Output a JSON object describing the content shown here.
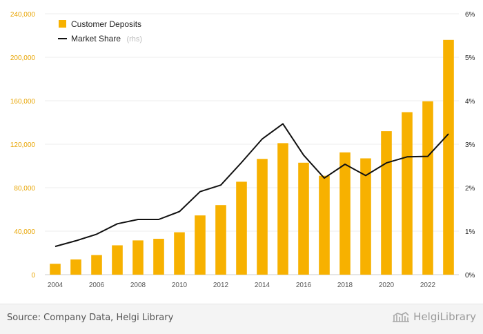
{
  "chart_data": {
    "type": "bar",
    "x": [
      2004,
      2005,
      2006,
      2007,
      2008,
      2009,
      2010,
      2011,
      2012,
      2013,
      2014,
      2015,
      2016,
      2017,
      2018,
      2019,
      2020,
      2021,
      2022,
      2023
    ],
    "xticks": [
      "2004",
      "2006",
      "2008",
      "2010",
      "2012",
      "2014",
      "2016",
      "2018",
      "2020",
      "2022"
    ],
    "series": [
      {
        "name": "Customer Deposits",
        "type": "bar",
        "axis": "left",
        "color": "#f7b100",
        "values": [
          10000,
          14000,
          18000,
          27000,
          31500,
          33000,
          39000,
          54500,
          64000,
          85500,
          106500,
          121000,
          103000,
          91000,
          112500,
          107000,
          132000,
          149500,
          159500,
          216000
        ]
      },
      {
        "name": "Market Share",
        "name_suffix": "(rhs)",
        "type": "line",
        "axis": "right",
        "color": "#111111",
        "values": [
          0.65,
          0.78,
          0.93,
          1.17,
          1.27,
          1.27,
          1.45,
          1.91,
          2.06,
          2.58,
          3.12,
          3.47,
          2.75,
          2.22,
          2.54,
          2.28,
          2.57,
          2.71,
          2.72,
          3.24
        ]
      }
    ],
    "y_left": {
      "min": 0,
      "max": 240000,
      "ticks": [
        "0",
        "40,000",
        "80,000",
        "120,000",
        "160,000",
        "200,000",
        "240,000"
      ]
    },
    "y_right": {
      "min": 0,
      "max": 6,
      "ticks": [
        "0%",
        "1%",
        "2%",
        "3%",
        "4%",
        "5%",
        "6%"
      ]
    },
    "grid": true,
    "legend_position": "top-left"
  },
  "footer": {
    "source": "Source: Company Data, Helgi Library",
    "brand_name": "Helgi",
    "brand_word": "Library"
  }
}
